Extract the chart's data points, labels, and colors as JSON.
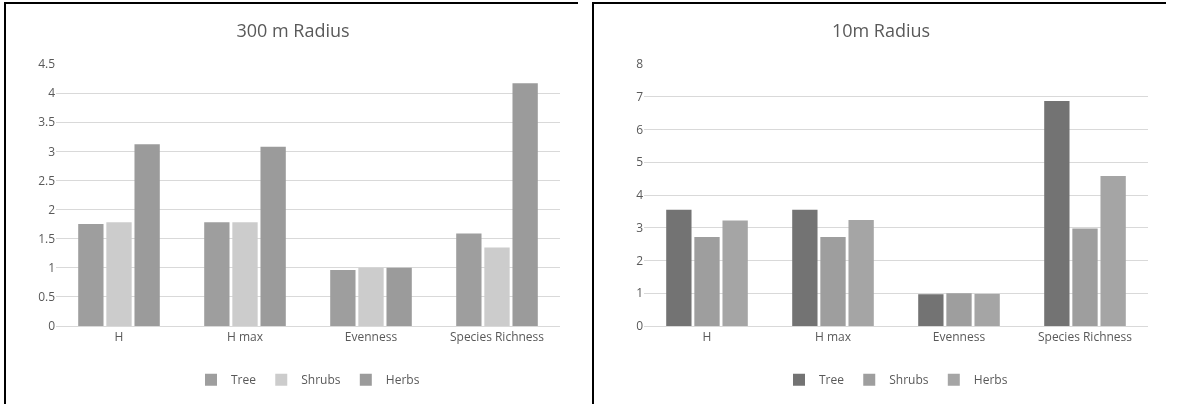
{
  "chart_data": [
    {
      "type": "bar",
      "title": "300 m Radius",
      "categories": [
        "H",
        "H max",
        "Evenness",
        "Species Richness"
      ],
      "series": [
        {
          "name": "Tree",
          "color": "#9e9e9e",
          "values": [
            1.75,
            1.78,
            0.96,
            1.59
          ]
        },
        {
          "name": "Shrubs",
          "color": "#cccccc",
          "values": [
            1.78,
            1.78,
            1.0,
            1.35
          ]
        },
        {
          "name": "Herbs",
          "color": "#9b9b9b",
          "values": [
            3.12,
            3.08,
            1.0,
            4.17
          ]
        }
      ],
      "ylim": [
        0,
        4.5
      ],
      "yticks": [
        0,
        0.5,
        1,
        1.5,
        2,
        2.5,
        3,
        3.5,
        4,
        4.5
      ],
      "grid": "y",
      "legend": "bottom"
    },
    {
      "type": "bar",
      "title": "10m Radius",
      "categories": [
        "H",
        "H max",
        "Evenness",
        "Species Richness"
      ],
      "series": [
        {
          "name": "Tree",
          "color": "#737373",
          "values": [
            3.55,
            3.55,
            0.97,
            6.87
          ]
        },
        {
          "name": "Shrubs",
          "color": "#9e9e9e",
          "values": [
            2.72,
            2.72,
            1.0,
            2.98
          ]
        },
        {
          "name": "Herbs",
          "color": "#a5a5a5",
          "values": [
            3.22,
            3.24,
            0.98,
            4.58
          ]
        }
      ],
      "ylim": [
        0,
        8
      ],
      "yticks": [
        0,
        1,
        2,
        3,
        4,
        5,
        6,
        7,
        8
      ],
      "grid": "y",
      "legend": "bottom"
    }
  ]
}
